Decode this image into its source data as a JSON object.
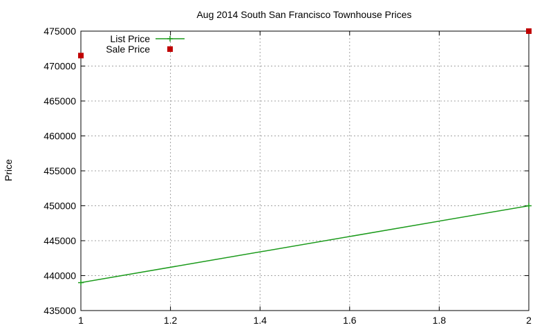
{
  "chart_data": {
    "type": "line",
    "title": "Aug 2014 South San Francisco Townhouse Prices",
    "xlabel": "",
    "ylabel": "Price",
    "xlim": [
      1,
      2
    ],
    "ylim": [
      435000,
      475000
    ],
    "xticks": [
      1,
      1.2,
      1.4,
      1.6,
      1.8,
      2
    ],
    "xtick_labels": [
      "1",
      "1.2",
      "1.4",
      "1.6",
      "1.8",
      "2"
    ],
    "yticks": [
      435000,
      440000,
      445000,
      450000,
      455000,
      460000,
      465000,
      470000,
      475000
    ],
    "ytick_labels": [
      "435000",
      "440000",
      "445000",
      "450000",
      "455000",
      "460000",
      "465000",
      "470000",
      "475000"
    ],
    "grid": true,
    "legend_position": "top-left",
    "series": [
      {
        "name": "List Price",
        "style": "linespoints",
        "color": "#1a9a1a",
        "x": [
          1,
          2
        ],
        "y": [
          439000,
          450000
        ]
      },
      {
        "name": "Sale Price",
        "style": "points",
        "color": "#c00000",
        "x": [
          1,
          2
        ],
        "y": [
          471500,
          475000
        ]
      }
    ]
  }
}
